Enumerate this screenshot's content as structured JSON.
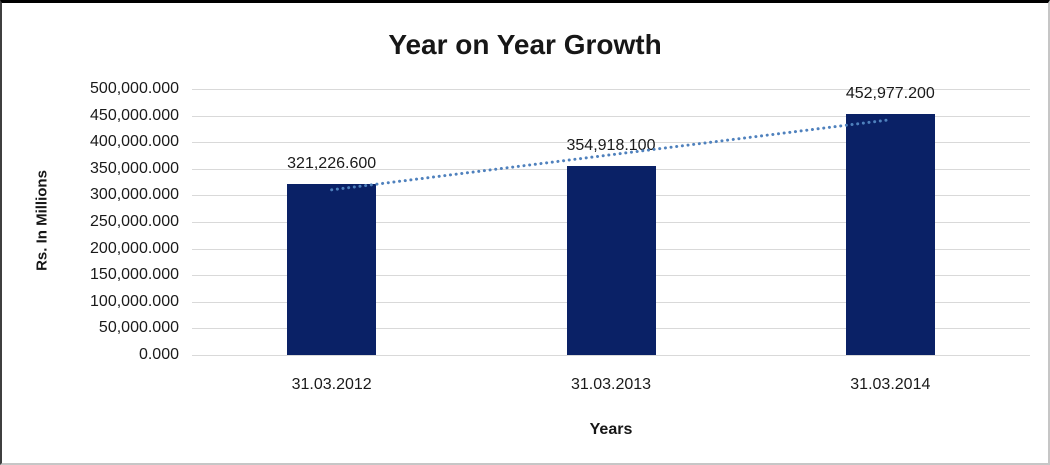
{
  "chart_data": {
    "type": "bar",
    "title": "Year on Year Growth",
    "xlabel": "Years",
    "ylabel": "Rs. In Millions",
    "categories": [
      "31.03.2012",
      "31.03.2013",
      "31.03.2014"
    ],
    "values": [
      321226.6,
      354918.1,
      452977.2
    ],
    "data_labels": [
      "321,226.600",
      "354,918.100",
      "452,977.200"
    ],
    "ytick_labels": [
      "0.000",
      "50,000.000",
      "100,000.000",
      "150,000.000",
      "200,000.000",
      "250,000.000",
      "300,000.000",
      "350,000.000",
      "400,000.000",
      "450,000.000",
      "500,000.000"
    ],
    "ylim": [
      0,
      500000
    ],
    "ytick_step": 50000,
    "grid": true,
    "legend": "none",
    "trendline": {
      "type": "linear",
      "style": "dotted"
    },
    "colors": {
      "bar": "#0a2166",
      "trendline": "#4f81bd",
      "gridline": "#d9d9d9",
      "text": "#1a1a1a"
    }
  }
}
